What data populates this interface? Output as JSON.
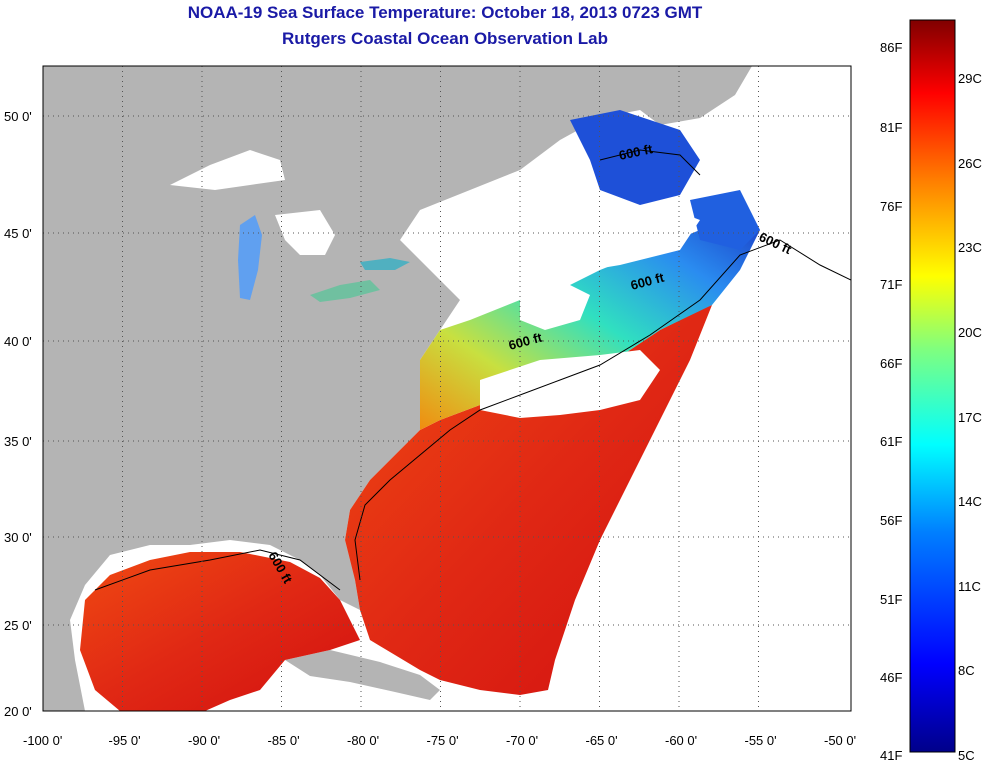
{
  "title_line1": "NOAA-19 Sea Surface Temperature:  October 18, 2013 0723 GMT",
  "title_line2": "Rutgers Coastal Ocean Observation Lab",
  "x_ticks": [
    "-100 0'",
    "-95 0'",
    "-90 0'",
    "-85 0'",
    "-80 0'",
    "-75 0'",
    "-70 0'",
    "-65 0'",
    "-60 0'",
    "-55 0'",
    "-50 0'"
  ],
  "y_ticks": [
    "50 0'",
    "45 0'",
    "40 0'",
    "35 0'",
    "30 0'",
    "25 0'",
    "20 0'"
  ],
  "contour_labels": [
    "600 ft",
    "600 ft",
    "600 ft",
    "600 ft",
    "600 ft"
  ],
  "colorbar": {
    "fahrenheit": [
      "86F",
      "81F",
      "76F",
      "71F",
      "66F",
      "61F",
      "56F",
      "51F",
      "46F",
      "41F"
    ],
    "celsius": [
      "29C",
      "26C",
      "23C",
      "20C",
      "17C",
      "14C",
      "11C",
      "8C",
      "5C"
    ]
  },
  "colors": {
    "land": "#b4b4b4",
    "no_data": "#ffffff",
    "title": "#1a1aa6",
    "warm": "#e4301a",
    "cool": "#1e40d0"
  }
}
